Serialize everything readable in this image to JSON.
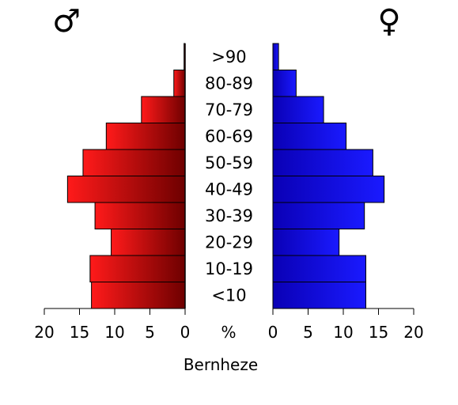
{
  "chart_data": {
    "type": "bar",
    "subtype": "population-pyramid",
    "title": "Bernheze",
    "unit_label": "%",
    "categories": [
      "<10",
      "10-19",
      "20-29",
      "30-39",
      "40-49",
      "50-59",
      "60-69",
      "70-79",
      "80-89",
      ">90"
    ],
    "series": [
      {
        "name": "♂",
        "side": "left",
        "color_light": "#ff1a1a",
        "color_dark": "#6e0000",
        "values": [
          13.3,
          13.5,
          10.5,
          12.8,
          16.7,
          14.5,
          11.2,
          6.2,
          1.6,
          0.15
        ]
      },
      {
        "name": "♀",
        "side": "right",
        "color_light": "#0a00b5",
        "color_dark": "#1a1aff",
        "values": [
          13.2,
          13.2,
          9.4,
          13.0,
          15.8,
          14.2,
          10.4,
          7.2,
          3.3,
          0.8
        ]
      }
    ],
    "xlim": [
      0,
      20
    ],
    "x_ticks": [
      "20",
      "15",
      "10",
      "5",
      "0"
    ],
    "x_ticks_right": [
      "0",
      "5",
      "10",
      "15",
      "20"
    ],
    "symbols": {
      "male": "♂",
      "female": "♀"
    }
  }
}
